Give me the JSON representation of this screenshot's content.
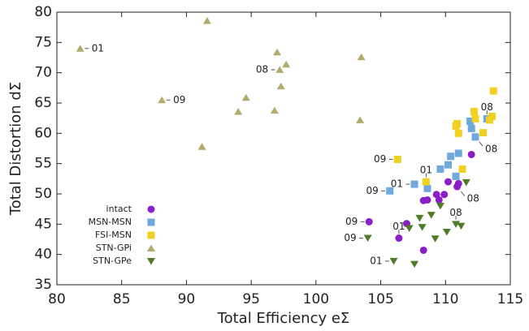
{
  "chart_data": {
    "type": "scatter",
    "xlabel": "Total Efficiency eΣ",
    "ylabel": "Total Distortion dΣ",
    "xlim": [
      80,
      115
    ],
    "ylim": [
      35,
      80
    ],
    "xticks": [
      80,
      85,
      90,
      95,
      100,
      105,
      110,
      115
    ],
    "yticks": [
      35,
      40,
      45,
      50,
      55,
      60,
      65,
      70,
      75,
      80
    ],
    "grid": false,
    "legend": "left",
    "series": [
      {
        "name": "intact",
        "color": "#8a1fc6",
        "marker": "circle",
        "x": [
          104.1,
          106.4,
          107.0,
          108.3,
          108.3,
          108.6,
          109.3,
          109.5,
          109.9,
          110.2,
          110.9,
          111.0,
          112.0
        ],
        "values": [
          45.4,
          42.7,
          45.1,
          40.7,
          48.9,
          49.0,
          49.9,
          49.0,
          49.9,
          52.0,
          51.2,
          51.7,
          56.5
        ]
      },
      {
        "name": "MSN-MSN",
        "color": "#6fa8dc",
        "marker": "square",
        "x": [
          105.7,
          107.6,
          108.6,
          109.6,
          110.2,
          110.4,
          110.8,
          111.0,
          111.9,
          112.0,
          112.3,
          113.2
        ],
        "values": [
          50.5,
          51.6,
          50.9,
          54.1,
          54.8,
          56.2,
          52.9,
          56.7,
          62.0,
          60.8,
          59.4,
          62.4
        ]
      },
      {
        "name": "FSI-MSN",
        "color": "#f0d020",
        "marker": "square",
        "x": [
          106.3,
          108.5,
          110.8,
          110.9,
          111.0,
          111.3,
          112.2,
          112.3,
          112.9,
          113.4,
          113.6,
          113.7
        ],
        "values": [
          55.7,
          52.0,
          61.2,
          61.6,
          60.0,
          54.1,
          63.6,
          62.4,
          60.1,
          62.2,
          62.8,
          67.0
        ]
      },
      {
        "name": "STN-GPi",
        "color": "#b3ab6c",
        "marker": "up",
        "x": [
          81.8,
          88.1,
          91.2,
          91.6,
          94.0,
          94.6,
          96.8,
          97.0,
          97.2,
          97.3,
          97.7,
          103.5,
          103.4
        ],
        "values": [
          74.0,
          65.5,
          57.8,
          78.6,
          63.6,
          65.9,
          63.8,
          73.4,
          70.5,
          67.8,
          71.4,
          72.6,
          62.2
        ]
      },
      {
        "name": "STN-GPe",
        "color": "#4f7a28",
        "marker": "down",
        "x": [
          104.0,
          106.0,
          107.2,
          107.6,
          108.0,
          108.2,
          108.9,
          109.2,
          109.6,
          110.1,
          110.8,
          111.2,
          111.6
        ],
        "values": [
          42.7,
          38.9,
          44.3,
          38.4,
          46.0,
          44.5,
          46.5,
          42.6,
          48.0,
          43.7,
          45.0,
          44.7,
          51.9
        ]
      }
    ],
    "annotations": [
      {
        "text": "01",
        "x": 81.8,
        "y": 74.0,
        "side": "right"
      },
      {
        "text": "09",
        "x": 88.1,
        "y": 65.5,
        "side": "right"
      },
      {
        "text": "08",
        "x": 97.2,
        "y": 70.5,
        "side": "left"
      },
      {
        "text": "09",
        "x": 106.3,
        "y": 55.7,
        "side": "left"
      },
      {
        "text": "01",
        "x": 108.5,
        "y": 52.0,
        "side": "above"
      },
      {
        "text": "01",
        "x": 107.6,
        "y": 51.6,
        "side": "left"
      },
      {
        "text": "09",
        "x": 105.7,
        "y": 50.5,
        "side": "left"
      },
      {
        "text": "08",
        "x": 113.2,
        "y": 62.4,
        "side": "above"
      },
      {
        "text": "08",
        "x": 112.3,
        "y": 59.4,
        "side": "below"
      },
      {
        "text": "08",
        "x": 110.9,
        "y": 51.2,
        "side": "below"
      },
      {
        "text": "08",
        "x": 110.8,
        "y": 45.0,
        "side": "above"
      },
      {
        "text": "09",
        "x": 104.1,
        "y": 45.4,
        "side": "left"
      },
      {
        "text": "01",
        "x": 106.4,
        "y": 42.7,
        "side": "above"
      },
      {
        "text": "09",
        "x": 104.0,
        "y": 42.7,
        "side": "left"
      },
      {
        "text": "01",
        "x": 106.0,
        "y": 38.9,
        "side": "left"
      }
    ]
  }
}
